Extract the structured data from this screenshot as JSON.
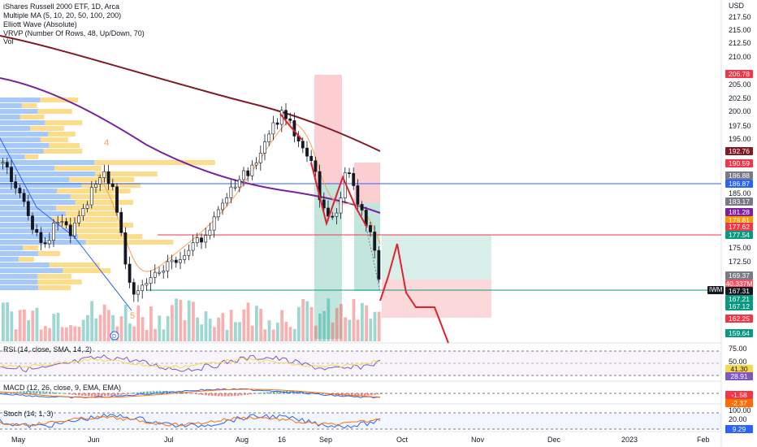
{
  "main": {
    "title": "iShares Russell 2000 ETF, 1D, Arca",
    "indicators": [
      "Multiple MA (5, 10, 20, 50, 100, 200)",
      "Elliott Wave (Absolute)",
      "VRVP (Number Of Rows, 48, Up/Down, 70)",
      "Vol"
    ],
    "wave_labels": [
      "4",
      "5"
    ],
    "price_axis": [
      "217.50",
      "215.00",
      "212.50",
      "210.00",
      "205.00",
      "202.50",
      "200.00",
      "197.50",
      "195.00",
      "185.00",
      "175.00",
      "172.50"
    ],
    "top_label": "USD",
    "price_tags": [
      {
        "value": "206.78",
        "color": "#f23645"
      },
      {
        "value": "192.76",
        "color": "#801922"
      },
      {
        "value": "190.59",
        "color": "#f23645"
      },
      {
        "value": "186.88",
        "color": "#787b86"
      },
      {
        "value": "186.87",
        "color": "#2962ff"
      },
      {
        "value": "183.17",
        "color": "#787b86"
      },
      {
        "value": "181.28",
        "color": "#7e1f9f"
      },
      {
        "value": "178.81",
        "color": "#ff9800"
      },
      {
        "value": "177.62",
        "color": "#f23645"
      },
      {
        "value": "177.54",
        "color": "#089981"
      },
      {
        "value": "169.37",
        "color": "#787b86"
      },
      {
        "value": "40.337M",
        "color": "#f7525f"
      },
      {
        "value": "167.31",
        "color": "#131722"
      },
      {
        "value": "167.21",
        "color": "#089981"
      },
      {
        "value": "167.12",
        "color": "#089981"
      },
      {
        "value": "162.25",
        "color": "#f23645"
      },
      {
        "value": "159.64",
        "color": "#089981"
      }
    ],
    "ticker_label": "IWM"
  },
  "rsi": {
    "title": "RSI (14, close, SMA, 14, 2)",
    "axis": [
      "75.00",
      "50.00"
    ],
    "tags": [
      {
        "value": "41.30",
        "color": "#f6d84f",
        "text": "#131722"
      },
      {
        "value": "28.91",
        "color": "#7e57c2",
        "text": "#ffffff"
      }
    ]
  },
  "macd": {
    "title": "MACD (12, 26, close, 9, EMA, EMA)",
    "tags": [
      {
        "value": "-1.58",
        "color": "#f23645",
        "text": "#ffffff"
      },
      {
        "value": "-2.37",
        "color": "#ff6d00",
        "text": "#ffffff"
      }
    ]
  },
  "stoch": {
    "title": "Stoch (14, 1, 3)",
    "axis": [
      "100.00",
      "20.00"
    ],
    "tags": [
      {
        "value": "9.29",
        "color": "#2962ff",
        "text": "#ffffff"
      }
    ]
  },
  "x_axis": [
    "May",
    "Jun",
    "Jul",
    "Aug",
    "16",
    "Sep",
    "Oct",
    "Nov",
    "Dec",
    "2023",
    "Feb"
  ],
  "colors": {
    "up": "#26a69a",
    "down": "#ef5350",
    "ma_fast": "#f7a14c",
    "ma_100": "#7e1f9f",
    "ma_200": "#801922",
    "wave": "#2962ff",
    "projection": "#e0212e"
  }
}
